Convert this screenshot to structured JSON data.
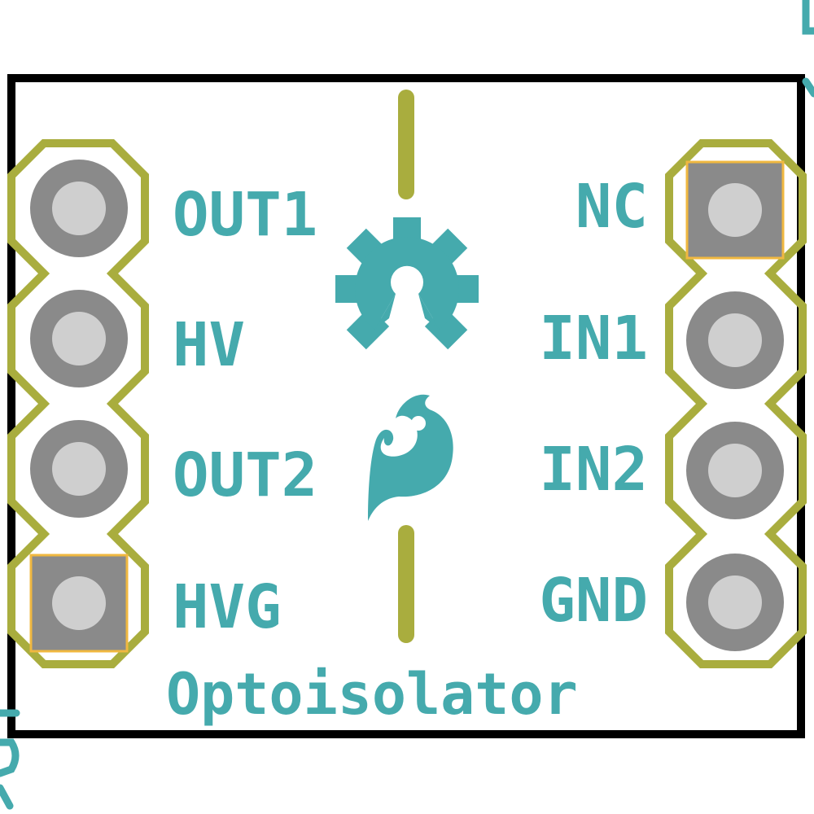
{
  "board": {
    "title": "Optoisolator",
    "colors": {
      "background": "#ffffff",
      "outline": "#000000",
      "silkscreen": "#45aaad",
      "header_outline": "#a9ad3e",
      "pad": "#8a8a8a",
      "drill": "#cfcfcf",
      "square_pad_border": "#f0b840"
    }
  },
  "left_header": {
    "pins": [
      {
        "label": "OUT1",
        "pad_shape": "round"
      },
      {
        "label": "HV",
        "pad_shape": "round"
      },
      {
        "label": "OUT2",
        "pad_shape": "round"
      },
      {
        "label": "HVG",
        "pad_shape": "square"
      }
    ]
  },
  "right_header": {
    "pins": [
      {
        "label": "NC",
        "pad_shape": "square"
      },
      {
        "label": "IN1",
        "pad_shape": "round"
      },
      {
        "label": "IN2",
        "pad_shape": "round"
      },
      {
        "label": "GND",
        "pad_shape": "round"
      }
    ]
  },
  "logos": {
    "top": "open-hardware-gear-icon",
    "bottom": "sparkfun-flame-icon"
  }
}
